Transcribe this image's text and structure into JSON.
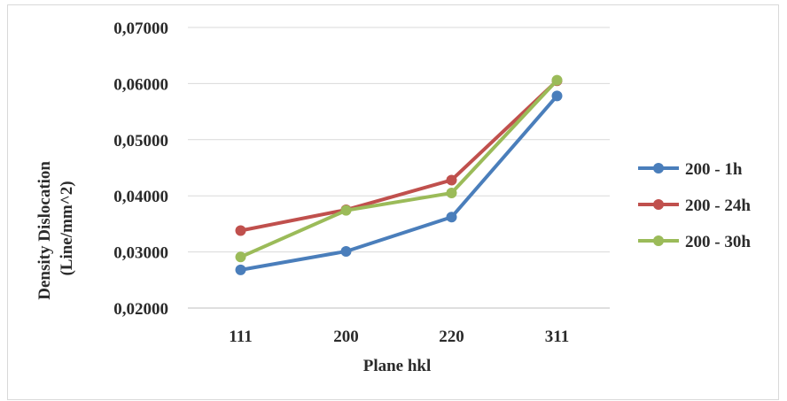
{
  "chart_data": {
    "type": "line",
    "categories": [
      "111",
      "200",
      "220",
      "311"
    ],
    "series": [
      {
        "name": "200 - 1h",
        "color": "#4a7ebb",
        "values": [
          0.0268,
          0.0301,
          0.0362,
          0.0578
        ]
      },
      {
        "name": "200 - 24h",
        "color": "#c0504d",
        "values": [
          0.0338,
          0.0375,
          0.0428,
          0.0605
        ]
      },
      {
        "name": "200 - 30h",
        "color": "#9bbb59",
        "values": [
          0.0291,
          0.0374,
          0.0405,
          0.0606
        ]
      }
    ],
    "title": "",
    "xlabel": "Plane hkl",
    "ylabel_lines": [
      "Density Dislocation",
      "(Line/mm^2)"
    ],
    "ylim": [
      0.02,
      0.07
    ],
    "yticks": [
      "0,02000",
      "0,03000",
      "0,04000",
      "0,05000",
      "0,06000",
      "0,07000"
    ],
    "grid": "horizontal",
    "legend_position": "right"
  }
}
